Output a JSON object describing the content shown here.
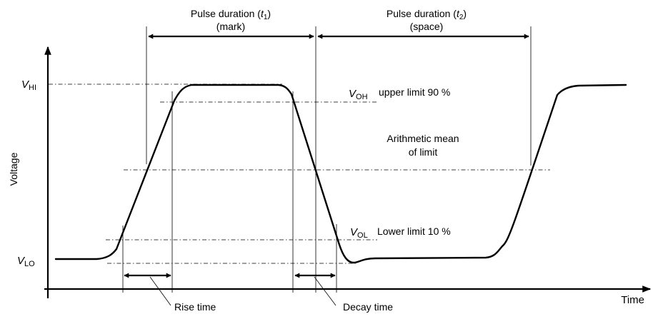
{
  "axes": {
    "x_label": "Time",
    "y_label": "Voltage"
  },
  "levels": {
    "v_hi": {
      "main": "V",
      "sub": "HI"
    },
    "v_lo": {
      "main": "V",
      "sub": "LO"
    },
    "v_oh": {
      "main": "V",
      "sub": "OH",
      "desc": "upper limit 90 %"
    },
    "v_ol": {
      "main": "V",
      "sub": "OL",
      "desc": "Lower limit 10 %"
    },
    "mean": {
      "line1": "Arithmetic mean",
      "line2": "of limit"
    }
  },
  "pulses": {
    "t1": {
      "prefix": "Pulse duration (",
      "var": "t",
      "sub": "1",
      "suffix": ")",
      "kind": "(mark)"
    },
    "t2": {
      "prefix": "Pulse duration (",
      "var": "t",
      "sub": "2",
      "suffix": ")",
      "kind": "(space)"
    }
  },
  "timings": {
    "rise": "Rise time",
    "decay": "Decay time"
  }
}
